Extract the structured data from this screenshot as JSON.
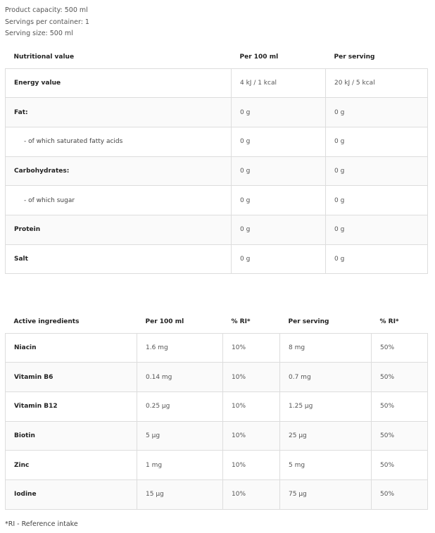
{
  "info": [
    "Product capacity: 500 ml",
    "Servings per container: 1",
    "Serving size: 500 ml"
  ],
  "nutrition": {
    "headers": [
      "Nutritional value",
      "Per 100 ml",
      "Per serving"
    ],
    "rows": [
      [
        "Energy value",
        "4 kJ / 1 kcal",
        "20 kJ / 5 kcal"
      ],
      [
        "Fat:",
        "0 g",
        "0 g"
      ],
      [
        "- of which saturated fatty acids",
        "0 g",
        "0 g"
      ],
      [
        "Carbohydrates:",
        "0 g",
        "0 g"
      ],
      [
        "- of which sugar",
        "0 g",
        "0 g"
      ],
      [
        "Protein",
        "0 g",
        "0 g"
      ],
      [
        "Salt",
        "0 g",
        "0 g"
      ]
    ]
  },
  "active": {
    "headers": [
      "Active ingredients",
      "Per 100 ml",
      "% RI*",
      "Per serving",
      "% RI*"
    ],
    "rows": [
      [
        "Niacin",
        "1.6 mg",
        "10%",
        "8 mg",
        "50%"
      ],
      [
        "Vitamin B6",
        "0.14 mg",
        "10%",
        "0.7 mg",
        "50%"
      ],
      [
        "Vitamin B12",
        "0.25 µg",
        "10%",
        "1.25 µg",
        "50%"
      ],
      [
        "Biotin",
        "5 µg",
        "10%",
        "25 µg",
        "50%"
      ],
      [
        "Zinc",
        "1 mg",
        "10%",
        "5 mg",
        "50%"
      ],
      [
        "Iodine",
        "15 µg",
        "10%",
        "75 µg",
        "50%"
      ]
    ]
  },
  "footnote": "*RI - Reference intake"
}
